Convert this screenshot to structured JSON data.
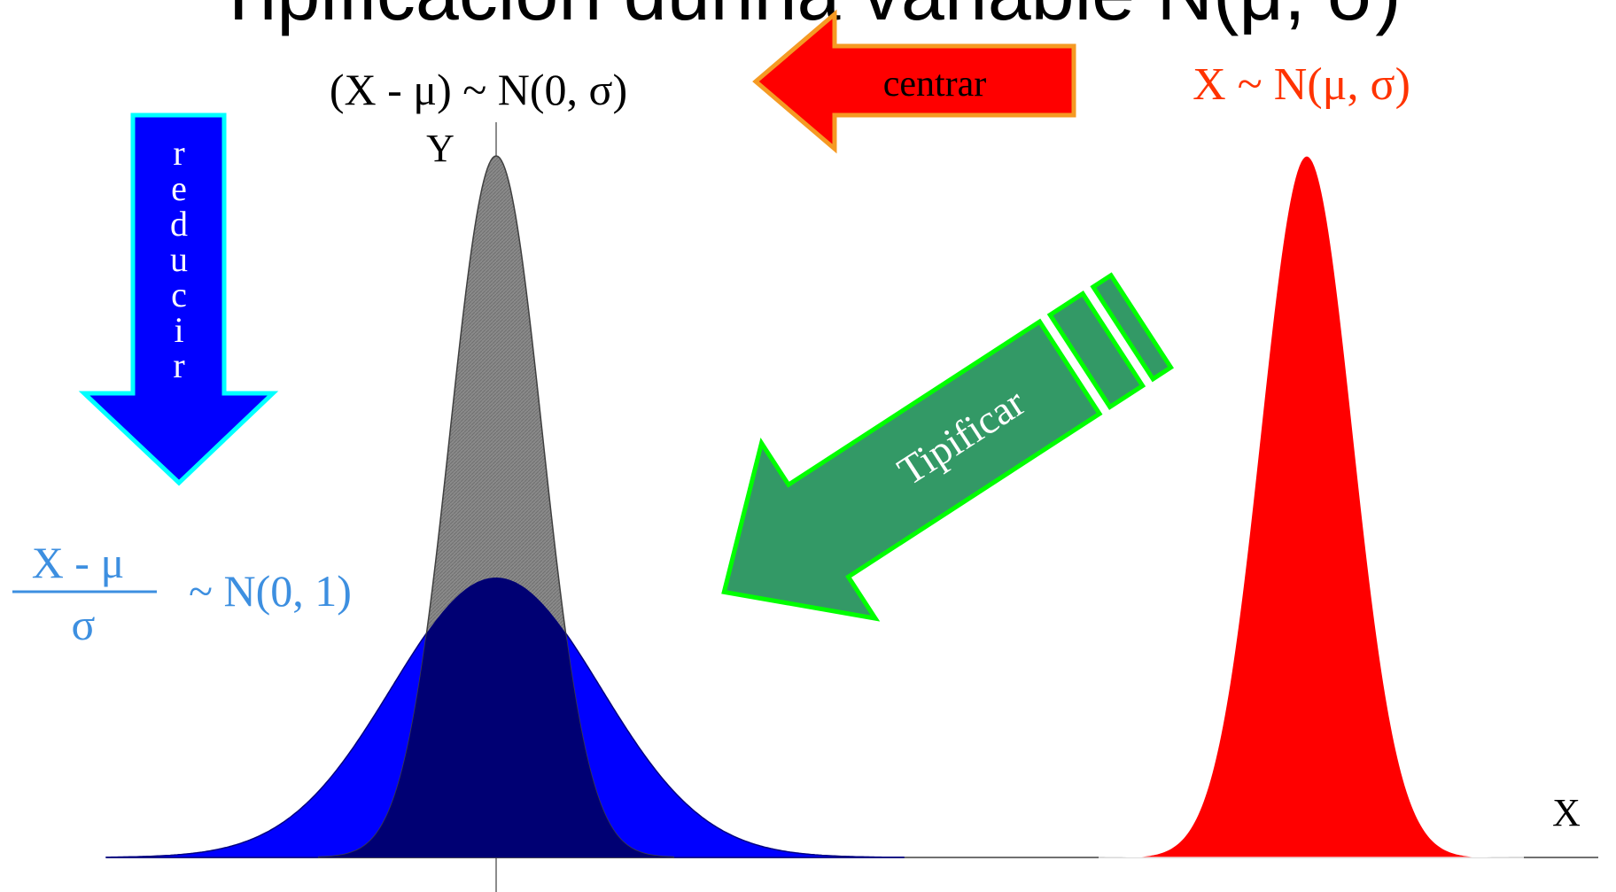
{
  "title": "Tipificación dunha variable N(μ, σ)",
  "labels": {
    "centered": "(X - μ) ~ N(0, σ)",
    "original": "X ~ N(μ, σ)",
    "y_axis": "Y",
    "x_axis": "X",
    "standard_dist": "~ N(0, 1)",
    "numerator": "X - μ",
    "denominator": "σ"
  },
  "arrows": {
    "centrar": "centrar",
    "reducir": [
      "r",
      "e",
      "d",
      "u",
      "c",
      "i",
      "r"
    ],
    "tipificar": "Tipificar"
  },
  "colors": {
    "title": "#4a43c9",
    "original_label": "#ff3300",
    "standard_label": "#3d8fe0",
    "red_curve": "#ff0000",
    "gray_curve": "#808080",
    "dark_overlap": "#000073",
    "blue_curve": "#0000ff",
    "centrar_arrow_fill": "#ff0000",
    "centrar_arrow_stroke": "#f59a23",
    "reducir_arrow_fill": "#0000ff",
    "reducir_arrow_stroke": "#00ffff",
    "tipificar_arrow_fill": "#339966",
    "tipificar_arrow_stroke": "#00ff00"
  }
}
